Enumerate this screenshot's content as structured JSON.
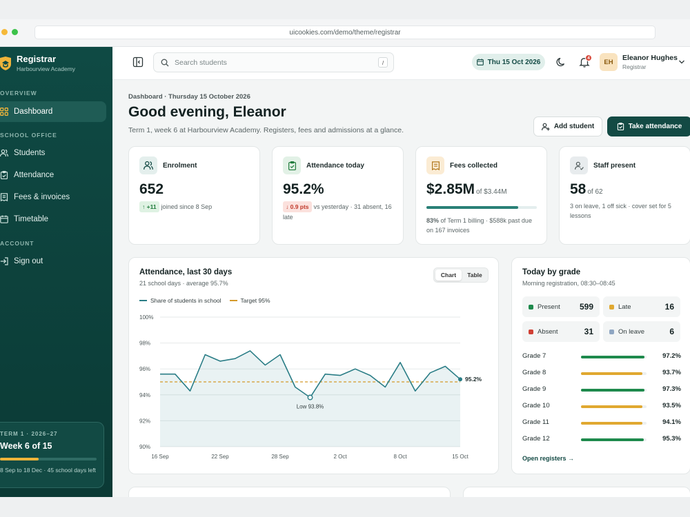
{
  "browser": {
    "url": "uicookies.com/demo/theme/registrar"
  },
  "brand": {
    "name": "Registrar",
    "school": "Harbourview Academy"
  },
  "sidebar": {
    "sections": [
      {
        "label": "OVERVIEW"
      },
      {
        "label": "SCHOOL OFFICE"
      },
      {
        "label": "ACCOUNT"
      }
    ],
    "items": [
      {
        "label": "Dashboard",
        "icon": "grid-icon",
        "active": true
      },
      {
        "label": "Students",
        "icon": "users-icon"
      },
      {
        "label": "Attendance",
        "icon": "clipboard-check-icon"
      },
      {
        "label": "Fees & invoices",
        "icon": "invoice-icon"
      },
      {
        "label": "Timetable",
        "icon": "calendar-icon"
      },
      {
        "label": "Sign out",
        "icon": "sign-out-icon"
      }
    ],
    "term": {
      "label": "TERM 1 · 2026–27",
      "week": "Week 6 of 15",
      "progress": 0.4,
      "note": "8 Sep to 18 Dec · 45 school days left"
    }
  },
  "topbar": {
    "search_placeholder": "Search students",
    "search_shortcut": "/",
    "date": "Thu 15 Oct 2026",
    "notifications": "4",
    "user": {
      "initials": "EH",
      "name": "Eleanor Hughes",
      "role": "Registrar"
    }
  },
  "page": {
    "breadcrumb": "Dashboard · Thursday 15 October 2026",
    "greeting": "Good evening, Eleanor",
    "subtitle": "Term 1, week 6 at Harbourview Academy. Registers, fees and admissions at a glance.",
    "add_student": "Add student",
    "take_attendance": "Take attendance"
  },
  "kpis": {
    "enrolment": {
      "title": "Enrolment",
      "value": "652",
      "chip": "↑ +11",
      "note": "joined since 8 Sep"
    },
    "attendance": {
      "title": "Attendance today",
      "value": "95.2%",
      "chip": "↓ 0.9 pts",
      "note": "vs yesterday · 31 absent, 16 late"
    },
    "fees": {
      "title": "Fees collected",
      "value": "$2.85M",
      "of": "of $3.44M",
      "progress": 0.83,
      "note_bold": "83%",
      "note": "of Term 1 billing · $588k past due on 167 invoices"
    },
    "staff": {
      "title": "Staff present",
      "value": "58",
      "of": "of 62",
      "note": "3 on leave, 1 off sick · cover set for 5 lessons"
    }
  },
  "attendance_chart": {
    "title": "Attendance, last 30 days",
    "subtitle": "21 school days · average 95.7%",
    "view_chart": "Chart",
    "view_table": "Table",
    "low_label": "Low 93.8%",
    "last_label": "95.2%"
  },
  "chart_data": {
    "type": "line",
    "title": "Attendance, last 30 days",
    "x_ticks": [
      "16 Sep",
      "22 Sep",
      "28 Sep",
      "2 Oct",
      "8 Oct",
      "15 Oct"
    ],
    "y_ticks": [
      "100%",
      "98%",
      "96%",
      "94%",
      "92%",
      "90%"
    ],
    "ylim": [
      90,
      100
    ],
    "series": [
      {
        "name": "Share of students in school",
        "color": "#2a7d86",
        "values": [
          95.6,
          95.6,
          94.3,
          97.1,
          96.6,
          96.8,
          97.4,
          96.3,
          97.1,
          94.6,
          93.8,
          95.6,
          95.5,
          96.0,
          95.5,
          94.6,
          96.5,
          94.3,
          95.7,
          96.2,
          95.2
        ]
      },
      {
        "name": "Target 95%",
        "color": "#d49a2a",
        "values": [
          95,
          95
        ]
      }
    ],
    "legend": "top-left",
    "grid": true
  },
  "grades": {
    "title": "Today by grade",
    "subtitle": "Morning registration, 08:30–08:45",
    "stats": [
      {
        "label": "Present",
        "value": "599",
        "color": "#1e8a4c"
      },
      {
        "label": "Late",
        "value": "16",
        "color": "#e0a830"
      },
      {
        "label": "Absent",
        "value": "31",
        "color": "#d04035"
      },
      {
        "label": "On leave",
        "value": "6",
        "color": "#8fa6c2"
      }
    ],
    "rows": [
      {
        "name": "Grade 7",
        "pct": "97.2%",
        "value": 97.2,
        "color": "#1e8a4c"
      },
      {
        "name": "Grade 8",
        "pct": "93.7%",
        "value": 93.7,
        "color": "#e0a830"
      },
      {
        "name": "Grade 9",
        "pct": "97.3%",
        "value": 97.3,
        "color": "#1e8a4c"
      },
      {
        "name": "Grade 10",
        "pct": "93.5%",
        "value": 93.5,
        "color": "#e0a830"
      },
      {
        "name": "Grade 11",
        "pct": "94.1%",
        "value": 94.1,
        "color": "#e0a830"
      },
      {
        "name": "Grade 12",
        "pct": "95.3%",
        "value": 95.3,
        "color": "#1e8a4c"
      }
    ],
    "open_registers": "Open registers →"
  }
}
